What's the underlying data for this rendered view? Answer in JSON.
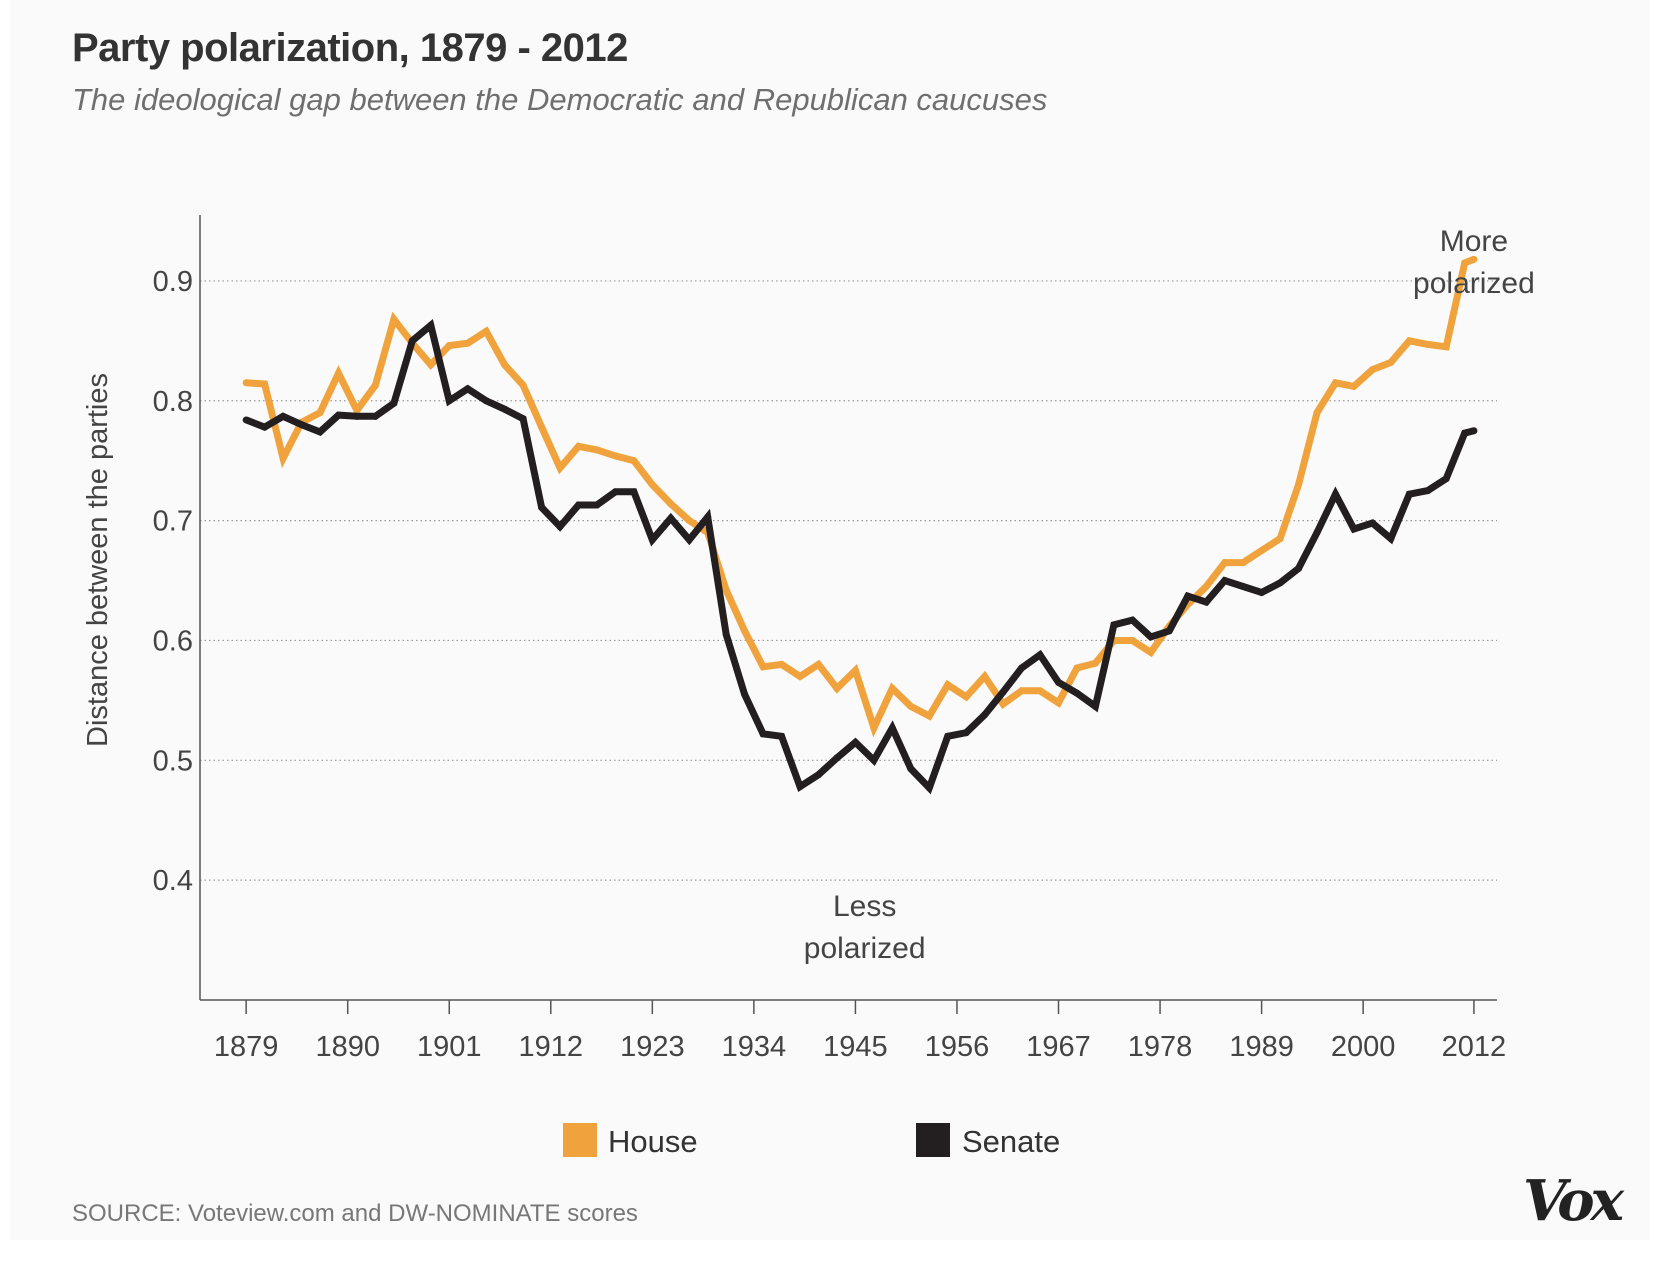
{
  "title": "Party polarization, 1879 - 2012",
  "subtitle": "The ideological gap between the Democratic and Republican caucuses",
  "source": "SOURCE: Voteview.com and DW-NOMINATE scores",
  "logo": "Vox",
  "colors": {
    "house": "#f0a33c",
    "senate": "#231f20",
    "grid": "#999999",
    "axis": "#555555"
  },
  "chart_data": {
    "type": "line",
    "title": "Party polarization, 1879 - 2012",
    "xlabel": "",
    "ylabel": "Distance between the parties",
    "xlim": [
      1874,
      2014.5
    ],
    "ylim": [
      0.3,
      0.955
    ],
    "x_ticks": [
      1879,
      1890,
      1901,
      1912,
      1923,
      1934,
      1945,
      1956,
      1967,
      1978,
      1989,
      2000,
      2012
    ],
    "y_ticks": [
      0.4,
      0.5,
      0.6,
      0.7,
      0.8,
      0.9
    ],
    "y_tick_labels": [
      "0.4",
      "0.5",
      "0.6",
      "0.7",
      "0.8",
      "0.9"
    ],
    "grid": true,
    "legend_position": "bottom-center",
    "annotations": [
      {
        "lines": [
          "More",
          "polarized"
        ],
        "x": 2012,
        "y": 0.925
      },
      {
        "lines": [
          "Less",
          "polarized"
        ],
        "x": 1946,
        "y": 0.37
      }
    ],
    "series": [
      {
        "name": "House",
        "x": [
          1879,
          1881,
          1883,
          1885,
          1887,
          1889,
          1891,
          1893,
          1895,
          1897,
          1899,
          1901,
          1903,
          1905,
          1907,
          1909,
          1911,
          1913,
          1915,
          1917,
          1919,
          1921,
          1923,
          1925,
          1927,
          1929,
          1931,
          1933,
          1935,
          1937,
          1939,
          1941,
          1943,
          1945,
          1947,
          1949,
          1951,
          1953,
          1955,
          1957,
          1959,
          1961,
          1963,
          1965,
          1967,
          1969,
          1971,
          1973,
          1975,
          1977,
          1979,
          1981,
          1983,
          1985,
          1987,
          1989,
          1991,
          1993,
          1995,
          1997,
          1999,
          2001,
          2003,
          2005,
          2007,
          2009,
          2011,
          2012
        ],
        "values": [
          0.815,
          0.814,
          0.752,
          0.782,
          0.79,
          0.823,
          0.792,
          0.813,
          0.868,
          0.848,
          0.83,
          0.846,
          0.848,
          0.858,
          0.83,
          0.813,
          0.778,
          0.744,
          0.762,
          0.759,
          0.754,
          0.75,
          0.73,
          0.714,
          0.7,
          0.69,
          0.642,
          0.608,
          0.578,
          0.58,
          0.57,
          0.58,
          0.56,
          0.575,
          0.527,
          0.56,
          0.545,
          0.537,
          0.563,
          0.553,
          0.57,
          0.547,
          0.558,
          0.558,
          0.548,
          0.577,
          0.581,
          0.6,
          0.6,
          0.59,
          0.612,
          0.63,
          0.645,
          0.665,
          0.665,
          0.675,
          0.685,
          0.73,
          0.79,
          0.815,
          0.812,
          0.826,
          0.832,
          0.85,
          0.847,
          0.845,
          0.915,
          0.918
        ]
      },
      {
        "name": "Senate",
        "x": [
          1879,
          1881,
          1883,
          1885,
          1887,
          1889,
          1891,
          1893,
          1895,
          1897,
          1899,
          1901,
          1903,
          1905,
          1907,
          1909,
          1911,
          1913,
          1915,
          1917,
          1919,
          1921,
          1923,
          1925,
          1927,
          1929,
          1931,
          1933,
          1935,
          1937,
          1939,
          1941,
          1943,
          1945,
          1947,
          1949,
          1951,
          1953,
          1955,
          1957,
          1959,
          1961,
          1963,
          1965,
          1967,
          1969,
          1971,
          1973,
          1975,
          1977,
          1979,
          1981,
          1983,
          1985,
          1987,
          1989,
          1991,
          1993,
          1995,
          1997,
          1999,
          2001,
          2003,
          2005,
          2007,
          2009,
          2011,
          2012
        ],
        "values": [
          0.784,
          0.778,
          0.787,
          0.78,
          0.774,
          0.788,
          0.787,
          0.787,
          0.798,
          0.85,
          0.863,
          0.8,
          0.81,
          0.8,
          0.793,
          0.785,
          0.711,
          0.695,
          0.713,
          0.713,
          0.724,
          0.724,
          0.684,
          0.702,
          0.684,
          0.703,
          0.605,
          0.555,
          0.522,
          0.52,
          0.478,
          0.488,
          0.502,
          0.515,
          0.5,
          0.527,
          0.493,
          0.477,
          0.52,
          0.523,
          0.538,
          0.557,
          0.577,
          0.588,
          0.565,
          0.556,
          0.545,
          0.613,
          0.617,
          0.603,
          0.608,
          0.637,
          0.632,
          0.65,
          0.645,
          0.64,
          0.648,
          0.66,
          0.69,
          0.722,
          0.693,
          0.698,
          0.685,
          0.722,
          0.725,
          0.735,
          0.773,
          0.775
        ]
      }
    ]
  }
}
